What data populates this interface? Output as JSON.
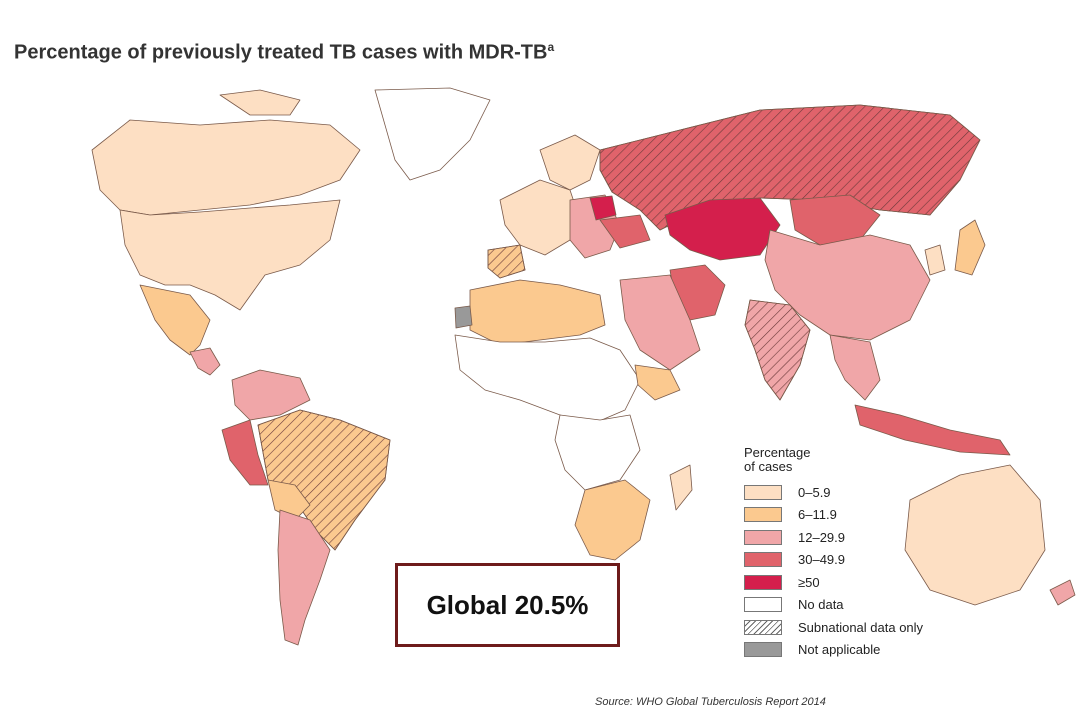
{
  "title": "Percentage of previously treated TB cases with MDR-TB",
  "title_superscript": "a",
  "legend": {
    "title_line1": "Percentage",
    "title_line2": "of cases",
    "items": [
      {
        "label": "0–5.9",
        "color": "#fddfc3"
      },
      {
        "label": "6–11.9",
        "color": "#fbc98f"
      },
      {
        "label": "12–29.9",
        "color": "#f0a6a8"
      },
      {
        "label": "30–49.9",
        "color": "#e0636b"
      },
      {
        "label": "≥50",
        "color": "#d41f4c"
      },
      {
        "label": "No data",
        "color": "#ffffff"
      },
      {
        "label": "Subnational data only",
        "color": "hatch"
      },
      {
        "label": "Not applicable",
        "color": "#999999"
      }
    ]
  },
  "global_label": "Global 20.5%",
  "source": "Source: WHO Global Tuberculosis Report 2014",
  "regions": [
    {
      "name": "canada",
      "category": "0–5.9"
    },
    {
      "name": "usa",
      "category": "0–5.9"
    },
    {
      "name": "greenland",
      "category": "No data"
    },
    {
      "name": "mexico",
      "category": "6–11.9"
    },
    {
      "name": "central-america",
      "category": "12–29.9"
    },
    {
      "name": "colombia-venezuela",
      "category": "12–29.9"
    },
    {
      "name": "peru",
      "category": "30–49.9"
    },
    {
      "name": "brazil",
      "category": "6–11.9",
      "subnational": true
    },
    {
      "name": "bolivia",
      "category": "6–11.9"
    },
    {
      "name": "argentina",
      "category": "12–29.9"
    },
    {
      "name": "western-europe",
      "category": "0–5.9"
    },
    {
      "name": "eastern-europe",
      "category": "12–29.9"
    },
    {
      "name": "belarus",
      "category": "≥50"
    },
    {
      "name": "russia",
      "category": "30–49.9",
      "subnational": true
    },
    {
      "name": "kazakhstan",
      "category": "≥50"
    },
    {
      "name": "mongolia",
      "category": "30–49.9"
    },
    {
      "name": "china",
      "category": "12–29.9"
    },
    {
      "name": "india",
      "category": "12–29.9",
      "subnational": true
    },
    {
      "name": "iran",
      "category": "30–49.9"
    },
    {
      "name": "middle-east",
      "category": "12–29.9"
    },
    {
      "name": "north-africa",
      "category": "6–11.9"
    },
    {
      "name": "west-africa",
      "category": "No data"
    },
    {
      "name": "ethiopia",
      "category": "6–11.9"
    },
    {
      "name": "southern-africa",
      "category": "6–11.9"
    },
    {
      "name": "southeast-asia",
      "category": "12–29.9"
    },
    {
      "name": "japan",
      "category": "6–11.9"
    },
    {
      "name": "australia",
      "category": "0–5.9"
    },
    {
      "name": "western-sahara",
      "category": "Not applicable"
    }
  ]
}
